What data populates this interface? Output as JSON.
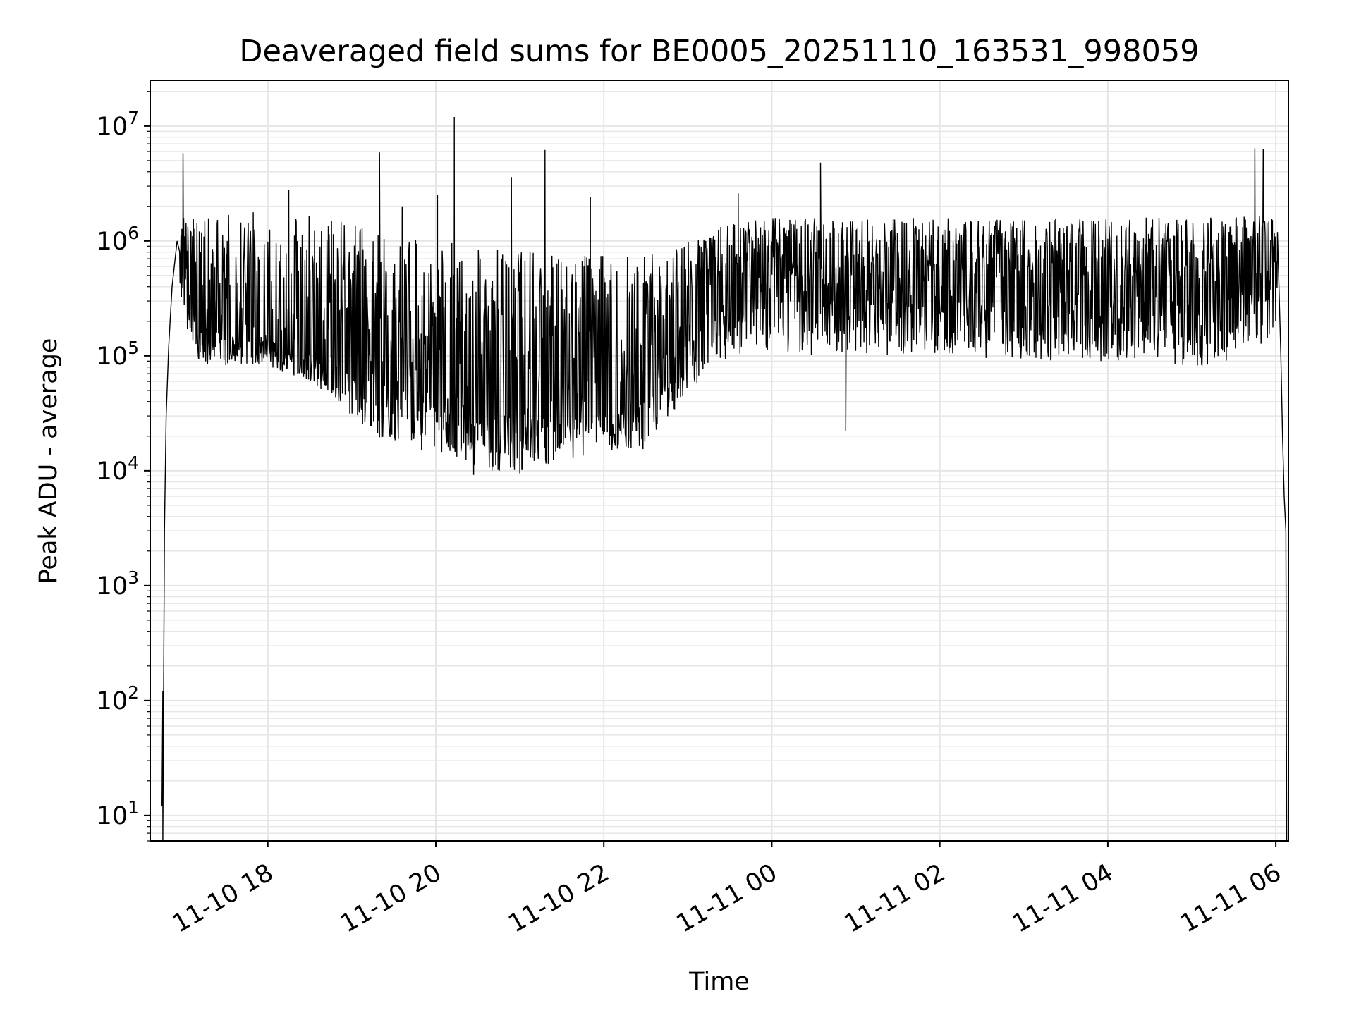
{
  "chart_data": {
    "type": "line",
    "title": "Deaveraged field sums for BE0005_20251110_163531_998059",
    "xlabel": "Time",
    "ylabel": "Peak ADU - average",
    "yscale": "log",
    "ylim": [
      6,
      25000000
    ],
    "xlim_hours": [
      16.6,
      30.15
    ],
    "grid": true,
    "line_color": "#000000",
    "grid_color": "#e6e6e6",
    "x_ticks": [
      {
        "hours": 18,
        "label": "11-10 18"
      },
      {
        "hours": 20,
        "label": "11-10 20"
      },
      {
        "hours": 22,
        "label": "11-10 22"
      },
      {
        "hours": 24,
        "label": "11-11 00"
      },
      {
        "hours": 26,
        "label": "11-11 02"
      },
      {
        "hours": 28,
        "label": "11-11 04"
      },
      {
        "hours": 30,
        "label": "11-11 06"
      }
    ],
    "y_ticks": [
      {
        "value": 10,
        "base": "10",
        "exp": "1"
      },
      {
        "value": 100,
        "base": "10",
        "exp": "2"
      },
      {
        "value": 1000,
        "base": "10",
        "exp": "3"
      },
      {
        "value": 10000,
        "base": "10",
        "exp": "4"
      },
      {
        "value": 100000,
        "base": "10",
        "exp": "5"
      },
      {
        "value": 1000000,
        "base": "10",
        "exp": "6"
      },
      {
        "value": 10000000,
        "base": "10",
        "exp": "7"
      }
    ],
    "series": [
      {
        "name": "deaveraged field sum",
        "start_hours": 16.74,
        "end_hours": 30.13,
        "envelope": {
          "hours": [
            16.9,
            17.0,
            17.2,
            17.5,
            18.0,
            18.5,
            19.0,
            19.5,
            20.0,
            20.5,
            21.0,
            21.5,
            22.0,
            22.5,
            23.0,
            23.5,
            24.0,
            25.0,
            26.0,
            27.0,
            28.0,
            29.0,
            29.5,
            30.0
          ],
          "upper": [
            1100000,
            1600000,
            1800000,
            1800000,
            1800000,
            1700000,
            1400000,
            1100000,
            1000000,
            900000,
            800000,
            800000,
            800000,
            800000,
            1000000,
            1500000,
            1600000,
            1600000,
            1600000,
            1600000,
            1600000,
            1600000,
            1700000,
            1800000
          ],
          "median": [
            900000,
            700000,
            180000,
            150000,
            140000,
            110000,
            90000,
            60000,
            50000,
            40000,
            35000,
            35000,
            35000,
            45000,
            150000,
            400000,
            500000,
            450000,
            450000,
            420000,
            400000,
            380000,
            450000,
            700000
          ],
          "lower": [
            600000,
            200000,
            80000,
            80000,
            80000,
            60000,
            30000,
            15000,
            15000,
            10000,
            10000,
            12000,
            15000,
            15000,
            50000,
            100000,
            100000,
            100000,
            100000,
            90000,
            90000,
            80000,
            90000,
            150000
          ]
        },
        "spikes": [
          {
            "hours": 16.99,
            "value": 5800000
          },
          {
            "hours": 18.25,
            "value": 2800000
          },
          {
            "hours": 19.33,
            "value": 5900000
          },
          {
            "hours": 19.6,
            "value": 2000000
          },
          {
            "hours": 20.22,
            "value": 12000000
          },
          {
            "hours": 20.02,
            "value": 2500000
          },
          {
            "hours": 20.9,
            "value": 3600000
          },
          {
            "hours": 21.3,
            "value": 6200000
          },
          {
            "hours": 21.84,
            "value": 2400000
          },
          {
            "hours": 24.58,
            "value": 4800000
          },
          {
            "hours": 23.6,
            "value": 2600000
          },
          {
            "hours": 29.75,
            "value": 6400000
          },
          {
            "hours": 29.85,
            "value": 6300000
          }
        ],
        "dips": [
          {
            "hours": 24.88,
            "value": 22000
          },
          {
            "hours": 20.45,
            "value": 9200
          },
          {
            "hours": 21.0,
            "value": 9500
          }
        ]
      }
    ]
  }
}
